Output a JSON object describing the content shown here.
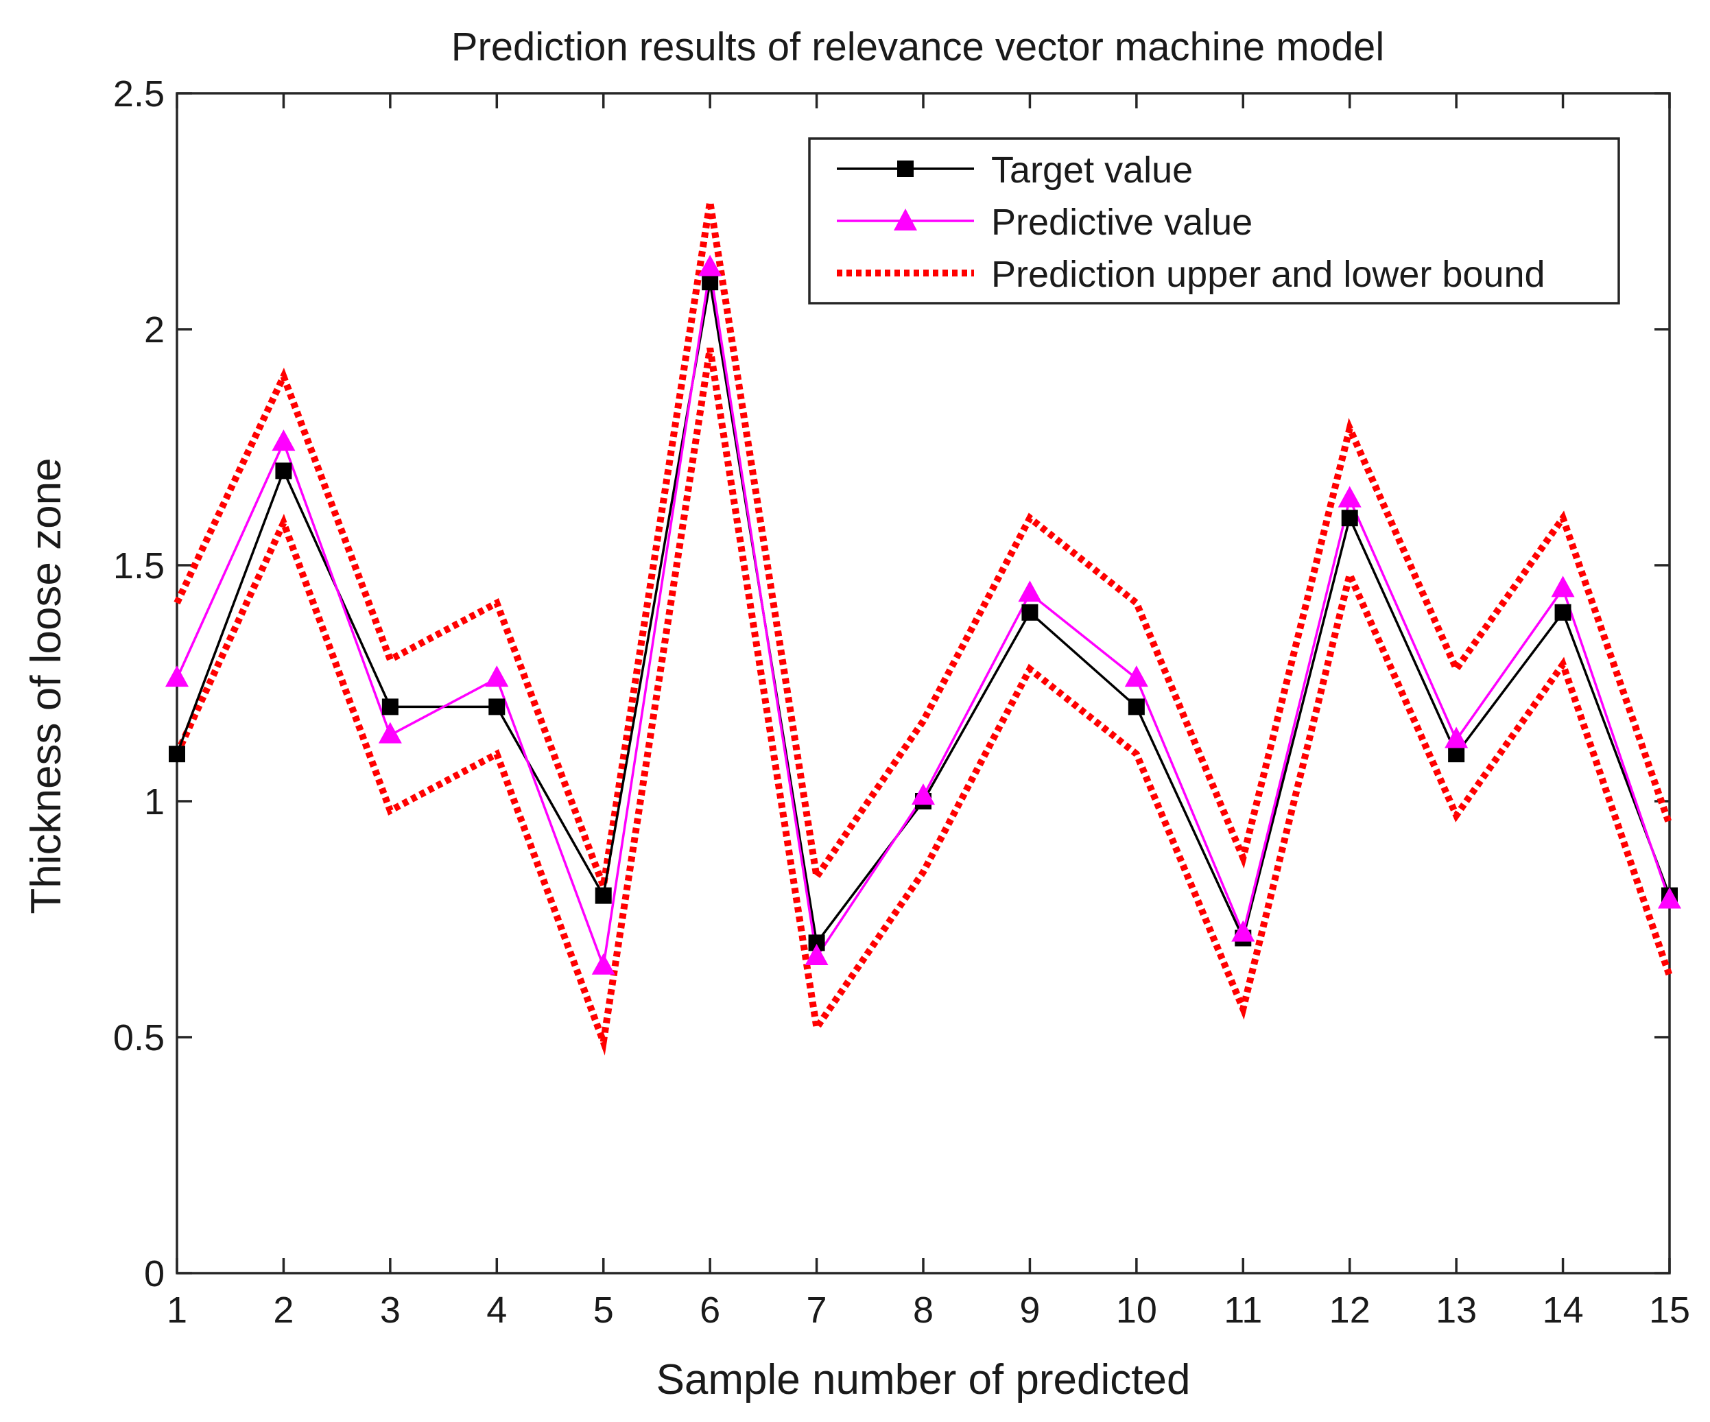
{
  "chart_data": {
    "type": "line",
    "title": "Prediction results of relevance vector machine model",
    "xlabel": "Sample number of predicted",
    "ylabel": "Thickness of loose zone",
    "x": [
      1,
      2,
      3,
      4,
      5,
      6,
      7,
      8,
      9,
      10,
      11,
      12,
      13,
      14,
      15
    ],
    "xlim": [
      1,
      15
    ],
    "ylim": [
      0,
      2.5
    ],
    "xticks": [
      "1",
      "2",
      "3",
      "4",
      "5",
      "6",
      "7",
      "8",
      "9",
      "10",
      "11",
      "12",
      "13",
      "14",
      "15"
    ],
    "yticks": [
      {
        "value": 0,
        "label": "0"
      },
      {
        "value": 0.5,
        "label": "0.5"
      },
      {
        "value": 1,
        "label": "1"
      },
      {
        "value": 1.5,
        "label": "1.5"
      },
      {
        "value": 2,
        "label": "2"
      },
      {
        "value": 2.5,
        "label": "2.5"
      }
    ],
    "grid": false,
    "legend_position": "top-right",
    "series": [
      {
        "name": "Target value",
        "style": "solid",
        "marker": "square",
        "color": "#000000",
        "values": [
          1.1,
          1.7,
          1.2,
          1.2,
          0.8,
          2.1,
          0.7,
          1.0,
          1.4,
          1.2,
          0.71,
          1.6,
          1.1,
          1.4,
          0.8
        ]
      },
      {
        "name": "Predictive value",
        "style": "solid",
        "marker": "triangle",
        "color": "#ff00ff",
        "values": [
          1.26,
          1.76,
          1.14,
          1.26,
          0.65,
          2.13,
          0.67,
          1.01,
          1.44,
          1.26,
          0.72,
          1.64,
          1.13,
          1.45,
          0.79
        ]
      },
      {
        "name": "Prediction upper and lower bound",
        "style": "dotted",
        "marker": "none",
        "color": "#ff0000",
        "upper": [
          1.42,
          1.9,
          1.3,
          1.42,
          0.82,
          2.27,
          0.84,
          1.17,
          1.6,
          1.42,
          0.88,
          1.79,
          1.28,
          1.6,
          0.95
        ],
        "lower": [
          1.1,
          1.59,
          0.98,
          1.1,
          0.49,
          1.96,
          0.52,
          0.85,
          1.28,
          1.1,
          0.56,
          1.48,
          0.97,
          1.29,
          0.63
        ]
      }
    ]
  }
}
